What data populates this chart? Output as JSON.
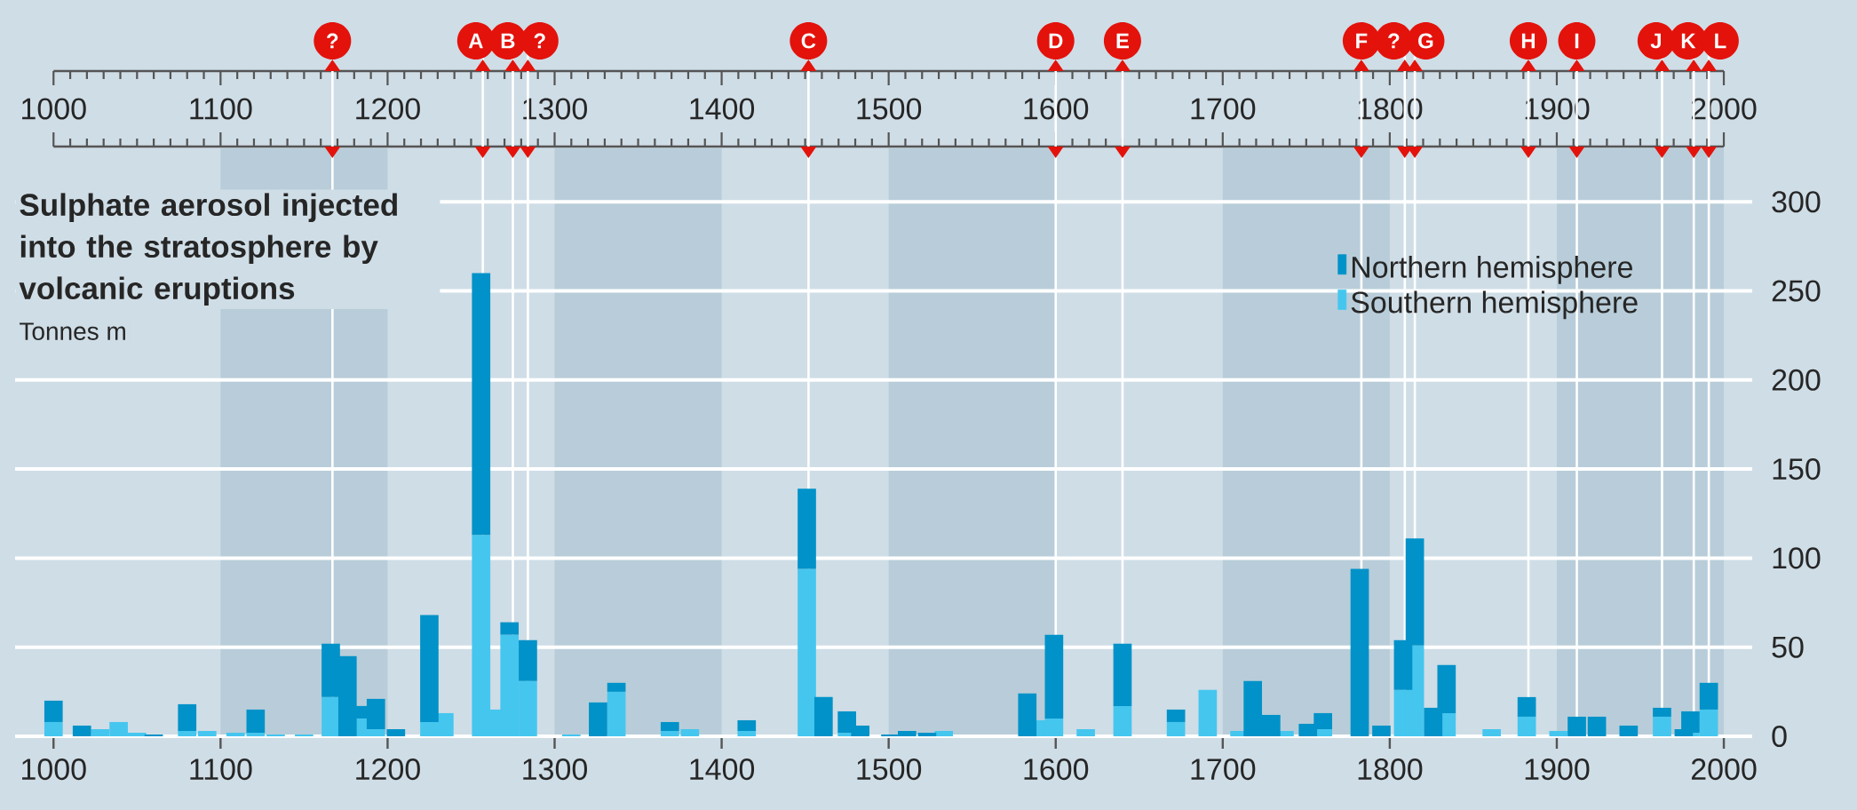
{
  "chart_data": {
    "type": "bar",
    "stacked": true,
    "title": "Sulphate aerosol injected into the stratosphere by volcanic eruptions",
    "subtitle": "Tonnes m",
    "x": [
      1000,
      1017,
      1028,
      1039,
      1050,
      1060,
      1080,
      1092,
      1109,
      1121,
      1133,
      1150,
      1166,
      1176,
      1184,
      1193,
      1205,
      1225,
      1234,
      1256,
      1265,
      1273,
      1284,
      1310,
      1326,
      1337,
      1369,
      1381,
      1415,
      1451,
      1461,
      1475,
      1483,
      1501,
      1511,
      1523,
      1533,
      1583,
      1590,
      1599,
      1618,
      1640,
      1672,
      1691,
      1710,
      1718,
      1729,
      1737,
      1751,
      1760,
      1782,
      1795,
      1808,
      1815,
      1826,
      1834,
      1861,
      1882,
      1901,
      1912,
      1924,
      1943,
      1963,
      1976,
      1980,
      1991
    ],
    "series": [
      {
        "name": "Southern hemisphere",
        "color": "#45c6ef",
        "values": [
          8,
          null,
          4,
          8,
          2,
          null,
          3,
          3,
          2,
          2,
          1,
          1,
          22,
          null,
          10,
          4,
          null,
          8,
          13,
          113,
          15,
          57,
          31,
          1,
          null,
          25,
          3,
          4,
          3,
          94,
          null,
          2,
          null,
          null,
          null,
          null,
          3,
          null,
          9,
          10,
          4,
          17,
          8,
          26,
          3,
          null,
          null,
          3,
          null,
          4,
          null,
          null,
          26,
          51,
          null,
          13,
          4,
          11,
          3,
          null,
          null,
          null,
          11,
          null,
          2,
          15
        ]
      },
      {
        "name": "Northern hemisphere",
        "color": "#0092c8",
        "values": [
          12,
          6,
          null,
          null,
          null,
          1,
          15,
          null,
          null,
          13,
          null,
          null,
          30,
          45,
          7,
          17,
          4,
          60,
          null,
          147,
          null,
          7,
          23,
          null,
          19,
          5,
          5,
          null,
          6,
          45,
          22,
          12,
          6,
          1,
          3,
          2,
          null,
          24,
          null,
          47,
          null,
          35,
          7,
          null,
          null,
          31,
          12,
          null,
          7,
          9,
          94,
          6,
          28,
          60,
          16,
          27,
          null,
          11,
          null,
          11,
          11,
          6,
          5,
          4,
          12,
          15
        ]
      }
    ],
    "xlim": [
      977,
      2017
    ],
    "xticks": [
      1000,
      1100,
      1200,
      1300,
      1400,
      1500,
      1600,
      1700,
      1800,
      1900,
      2000
    ],
    "x2lim": [
      1000,
      2000
    ],
    "x2ticks": [
      1000,
      1100,
      1200,
      1300,
      1400,
      1500,
      1600,
      1700,
      1800,
      1900,
      2000
    ],
    "ylim": [
      0,
      330
    ],
    "yticks": [
      0,
      50,
      100,
      150,
      200,
      250,
      300
    ],
    "grid": "y",
    "legend": "top right",
    "bands": [
      {
        "axis": "x",
        "from": 1100,
        "to": 1200,
        "color": "#b8cdd9"
      },
      {
        "axis": "x",
        "from": 1300,
        "to": 1400,
        "color": "#b8cdd9"
      },
      {
        "axis": "x",
        "from": 1500,
        "to": 1600,
        "color": "#b8cdd9"
      },
      {
        "axis": "x",
        "from": 1700,
        "to": 1800,
        "color": "#b8cdd9"
      },
      {
        "axis": "x",
        "from": 1900,
        "to": 2000,
        "color": "#b8cdd9"
      }
    ],
    "ref_lines": [
      {
        "axis": "x",
        "value": 1167,
        "label": "?",
        "color": "#ffffff"
      },
      {
        "axis": "x",
        "value": 1257,
        "label": "A",
        "color": "#ffffff"
      },
      {
        "axis": "x",
        "value": 1275,
        "label": "B",
        "color": "#ffffff"
      },
      {
        "axis": "x",
        "value": 1284,
        "label": "?",
        "color": "#ffffff"
      },
      {
        "axis": "x",
        "value": 1452,
        "label": "C",
        "color": "#ffffff"
      },
      {
        "axis": "x",
        "value": 1600,
        "label": "D",
        "color": "#ffffff"
      },
      {
        "axis": "x",
        "value": 1640,
        "label": "E",
        "color": "#ffffff"
      },
      {
        "axis": "x",
        "value": 1783,
        "label": "F",
        "color": "#ffffff"
      },
      {
        "axis": "x",
        "value": 1809,
        "label": "?",
        "color": "#ffffff"
      },
      {
        "axis": "x",
        "value": 1815,
        "label": "G",
        "color": "#ffffff"
      },
      {
        "axis": "x",
        "value": 1883,
        "label": "H",
        "color": "#ffffff"
      },
      {
        "axis": "x",
        "value": 1912,
        "label": "I",
        "color": "#ffffff"
      },
      {
        "axis": "x",
        "value": 1963,
        "label": "J",
        "color": "#ffffff"
      },
      {
        "axis": "x",
        "value": 1982,
        "label": "K",
        "color": "#ffffff"
      },
      {
        "axis": "x",
        "value": 1991,
        "label": "L",
        "color": "#ffffff"
      }
    ]
  }
}
